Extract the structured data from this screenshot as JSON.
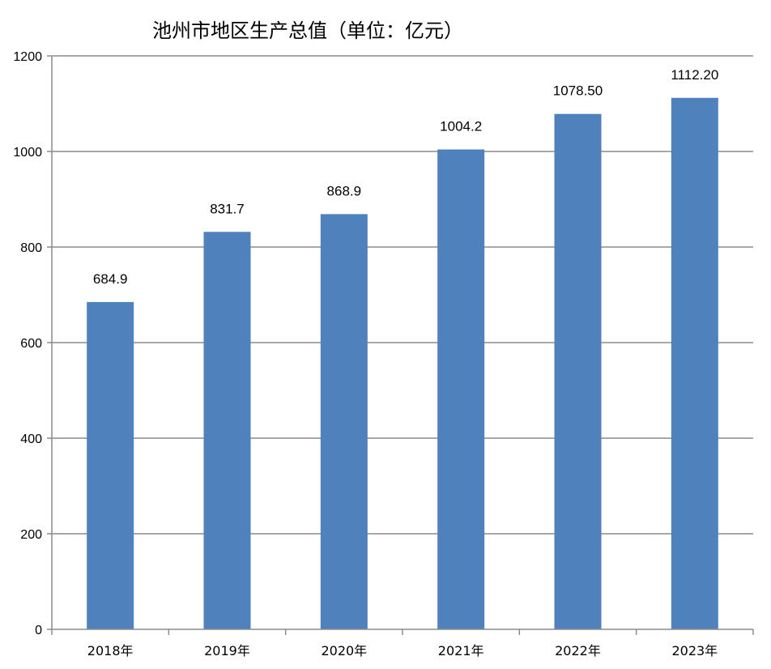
{
  "chart_data": {
    "type": "bar",
    "title": "池州市地区生产总值（单位：亿元）",
    "xlabel": "",
    "ylabel": "",
    "categories": [
      "2018年",
      "2019年",
      "2020年",
      "2021年",
      "2022年",
      "2023年"
    ],
    "values": [
      684.9,
      831.7,
      868.9,
      1004.2,
      1078.5,
      1112.2
    ],
    "data_labels": [
      "684.9",
      "831.7",
      "868.9",
      "1004.2",
      "1078.50",
      "1112.20"
    ],
    "ylim": [
      0,
      1200
    ],
    "yticks": [
      0,
      200,
      400,
      600,
      800,
      1000,
      1200
    ],
    "grid": true,
    "legend": "none",
    "bar_color": "#4f81bd",
    "grid_color": "#8c8c8c",
    "axis_color": "#8c8c8c"
  }
}
